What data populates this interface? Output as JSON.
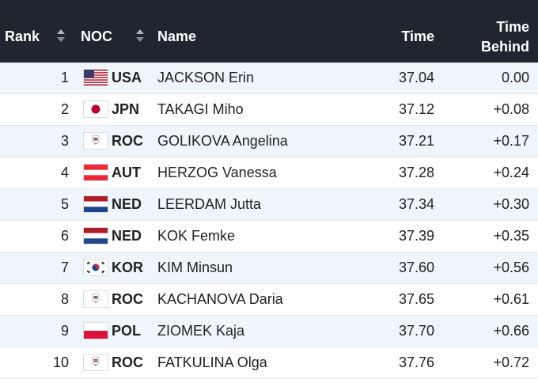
{
  "header": {
    "rank": "Rank",
    "noc": "NOC",
    "name": "Name",
    "time": "Time",
    "behind_line1": "Time",
    "behind_line2": "Behind"
  },
  "rows": [
    {
      "rank": "1",
      "noc": "USA",
      "flag": "usa-flag-icon",
      "name": "JACKSON Erin",
      "time": "37.04",
      "behind": "0.00"
    },
    {
      "rank": "2",
      "noc": "JPN",
      "flag": "japan-flag-icon",
      "name": "TAKAGI Miho",
      "time": "37.12",
      "behind": "+0.08"
    },
    {
      "rank": "3",
      "noc": "ROC",
      "flag": "roc-emblem-icon",
      "name": "GOLIKOVA Angelina",
      "time": "37.21",
      "behind": "+0.17"
    },
    {
      "rank": "4",
      "noc": "AUT",
      "flag": "austria-flag-icon",
      "name": "HERZOG Vanessa",
      "time": "37.28",
      "behind": "+0.24"
    },
    {
      "rank": "5",
      "noc": "NED",
      "flag": "netherlands-flag-icon",
      "name": "LEERDAM Jutta",
      "time": "37.34",
      "behind": "+0.30"
    },
    {
      "rank": "6",
      "noc": "NED",
      "flag": "netherlands-flag-icon",
      "name": "KOK Femke",
      "time": "37.39",
      "behind": "+0.35"
    },
    {
      "rank": "7",
      "noc": "KOR",
      "flag": "korea-flag-icon",
      "name": "KIM Minsun",
      "time": "37.60",
      "behind": "+0.56"
    },
    {
      "rank": "8",
      "noc": "ROC",
      "flag": "roc-emblem-icon",
      "name": "KACHANOVA Daria",
      "time": "37.65",
      "behind": "+0.61"
    },
    {
      "rank": "9",
      "noc": "POL",
      "flag": "poland-flag-icon",
      "name": "ZIOMEK Kaja",
      "time": "37.70",
      "behind": "+0.66"
    },
    {
      "rank": "10",
      "noc": "ROC",
      "flag": "roc-emblem-icon",
      "name": "FATKULINA Olga",
      "time": "37.76",
      "behind": "+0.72"
    }
  ],
  "colors": {
    "header_bg": "#1f2630",
    "row_alt_bg": "#eef5fb",
    "row_bg": "#ffffff"
  }
}
